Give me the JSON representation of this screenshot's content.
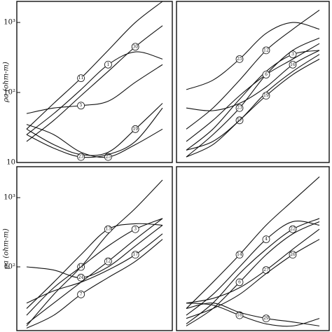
{
  "chart_data": [
    {
      "type": "line",
      "log_scale": true,
      "ylim": [
        10,
        2000
      ],
      "yticks": [
        {
          "value": 1000,
          "label": "10³"
        },
        {
          "value": 100,
          "label": "10²"
        },
        10
      ],
      "ylabel": "ρa (ohm-m)",
      "categories": [
        null,
        null,
        null,
        null,
        null,
        null
      ],
      "series": [
        {
          "name": "11",
          "color": "#111",
          "values": [
            30,
            70,
            160,
            400,
            1000,
            2000
          ]
        },
        {
          "name": "1",
          "color": "#111",
          "values": [
            25,
            50,
            110,
            250,
            380,
            300
          ]
        },
        {
          "name": "30",
          "color": "#111",
          "values": [
            20,
            40,
            90,
            200,
            450,
            900
          ]
        },
        {
          "name": "5",
          "color": "#111",
          "values": [
            50,
            60,
            65,
            75,
            140,
            250
          ]
        },
        {
          "name": "25",
          "color": "#111",
          "values": [
            35,
            25,
            14,
            12,
            18,
            30
          ]
        },
        {
          "name": "19",
          "color": "#111",
          "values": [
            30,
            18,
            13,
            14,
            30,
            70
          ]
        },
        {
          "name": "23",
          "color": "#111",
          "values": [
            25,
            16,
            12,
            13,
            20,
            60
          ]
        }
      ]
    },
    {
      "type": "line",
      "log_scale": true,
      "ylim": [
        10,
        2000
      ],
      "categories": [
        null,
        null,
        null,
        null,
        null,
        null
      ],
      "series": [
        {
          "name": "25",
          "color": "#111",
          "values": [
            110,
            150,
            300,
            700,
            1000,
            800
          ]
        },
        {
          "name": "12",
          "color": "#111",
          "values": [
            30,
            60,
            150,
            400,
            800,
            1500
          ]
        },
        {
          "name": "3",
          "color": "#111",
          "values": [
            15,
            30,
            80,
            200,
            350,
            400
          ]
        },
        {
          "name": "23",
          "color": "#111",
          "values": [
            12,
            25,
            60,
            180,
            400,
            600
          ]
        },
        {
          "name": "6",
          "color": "#111",
          "values": [
            20,
            40,
            90,
            180,
            300,
            500
          ]
        },
        {
          "name": "16",
          "color": "#111",
          "values": [
            60,
            55,
            70,
            120,
            250,
            400
          ]
        },
        {
          "name": "17",
          "color": "#111",
          "values": [
            15,
            20,
            40,
            100,
            200,
            350
          ]
        },
        {
          "name": "19",
          "color": "#111",
          "values": [
            12,
            18,
            40,
            90,
            180,
            300
          ]
        }
      ]
    },
    {
      "type": "line",
      "log_scale": true,
      "ylim": [
        12,
        2800
      ],
      "yticks": [
        {
          "value": 1000,
          "label": "10³"
        },
        {
          "value": 100,
          "label": "10²"
        }
      ],
      "ylabel": "ρa (ohm-m)",
      "categories": [
        null,
        null,
        null,
        null,
        null,
        null
      ],
      "series": [
        {
          "name": "11",
          "color": "#111",
          "values": [
            14,
            40,
            100,
            300,
            700,
            1800
          ]
        },
        {
          "name": "13",
          "color": "#111",
          "values": [
            25,
            60,
            150,
            350,
            420,
            400
          ]
        },
        {
          "name": "3",
          "color": "#111",
          "values": [
            20,
            50,
            100,
            200,
            350,
            500
          ]
        },
        {
          "name": "24",
          "color": "#111",
          "values": [
            100,
            90,
            70,
            100,
            200,
            400
          ]
        },
        {
          "name": "12",
          "color": "#111",
          "values": [
            15,
            30,
            60,
            120,
            250,
            500
          ]
        },
        {
          "name": "17",
          "color": "#111",
          "values": [
            30,
            45,
            60,
            90,
            150,
            300
          ]
        },
        {
          "name": "7",
          "color": "#111",
          "values": [
            13,
            20,
            40,
            70,
            120,
            250
          ]
        }
      ]
    },
    {
      "type": "line",
      "log_scale": true,
      "ylim": [
        12,
        2800
      ],
      "categories": [
        null,
        null,
        null,
        null,
        null,
        null
      ],
      "series": [
        {
          "name": "14",
          "color": "#111",
          "values": [
            25,
            60,
            150,
            400,
            900,
            2000
          ]
        },
        {
          "name": "4",
          "color": "#111",
          "values": [
            20,
            40,
            100,
            250,
            450,
            400
          ]
        },
        {
          "name": "22",
          "color": "#111",
          "values": [
            15,
            30,
            80,
            180,
            350,
            500
          ]
        },
        {
          "name": "6",
          "color": "#111",
          "values": [
            14,
            25,
            60,
            150,
            300,
            450
          ]
        },
        {
          "name": "27",
          "color": "#111",
          "values": [
            30,
            35,
            50,
            90,
            180,
            350
          ]
        },
        {
          "name": "26",
          "color": "#111",
          "values": [
            18,
            25,
            40,
            80,
            150,
            250
          ]
        },
        {
          "name": "18",
          "color": "#111",
          "values": [
            30,
            28,
            20,
            15,
            14,
            18
          ]
        },
        {
          "name": "29",
          "color": "#111",
          "values": [
            25,
            30,
            22,
            18,
            16,
            14
          ]
        }
      ]
    }
  ]
}
